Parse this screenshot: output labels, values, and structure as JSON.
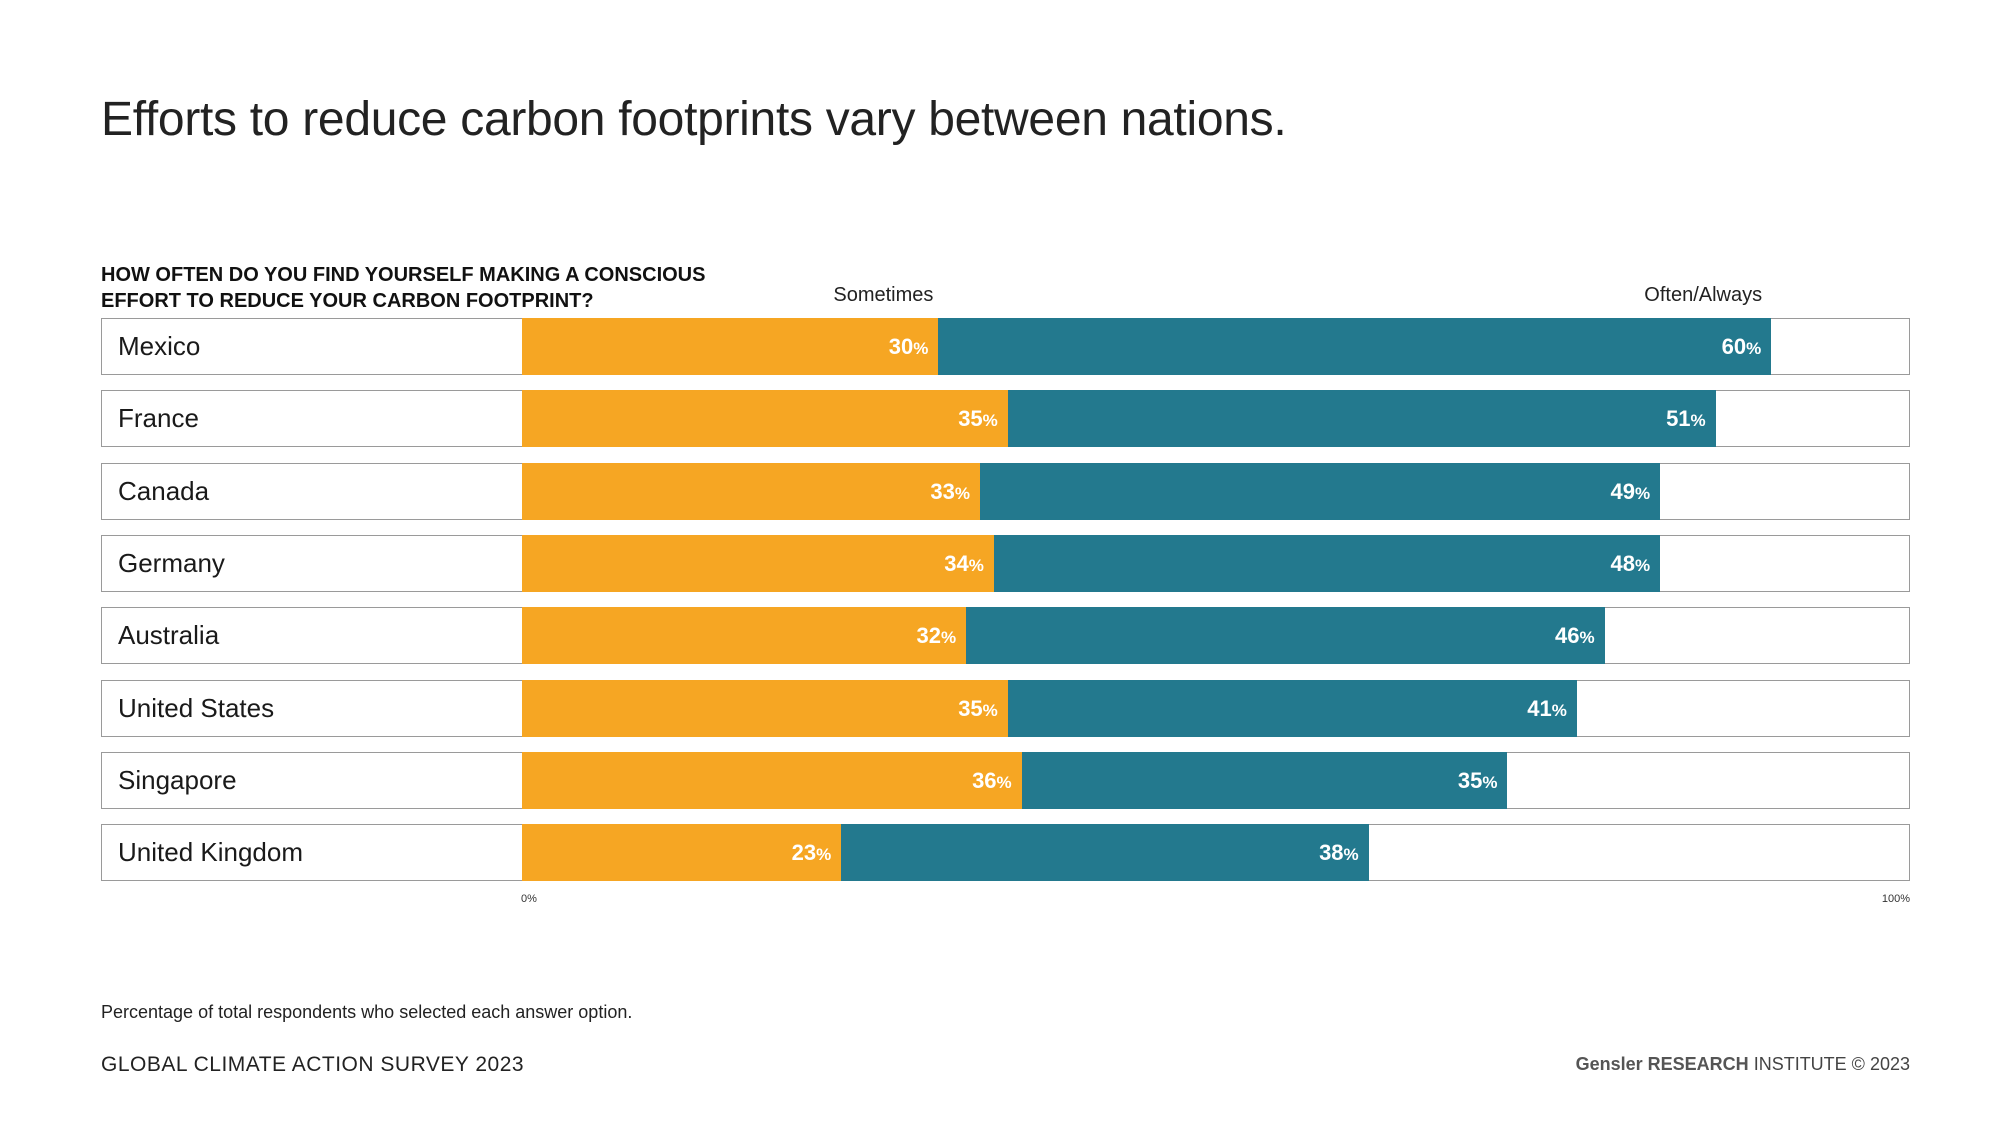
{
  "title": "Efforts to reduce carbon footprints vary between nations.",
  "question": {
    "line1": "HOW OFTEN DO YOU FIND YOURSELF MAKING A CONSCIOUS",
    "line2": "EFFORT TO REDUCE YOUR CARBON FOOTPRINT?"
  },
  "colors": {
    "sometimes": "#F6A623",
    "often": "#23798E"
  },
  "chart_data": {
    "type": "bar",
    "stacked": true,
    "orientation": "horizontal",
    "categories": [
      "Mexico",
      "France",
      "Canada",
      "Germany",
      "Australia",
      "United States",
      "Singapore",
      "United Kingdom"
    ],
    "series": [
      {
        "name": "Sometimes",
        "values": [
          30,
          35,
          33,
          34,
          32,
          35,
          36,
          23
        ]
      },
      {
        "name": "Often/Always",
        "values": [
          60,
          51,
          49,
          48,
          46,
          41,
          35,
          38
        ]
      }
    ],
    "value_suffix": "%",
    "xlim": [
      0,
      100
    ],
    "tick_labels": [
      "0%",
      "100%"
    ],
    "legend_placement": "top",
    "grid": false
  },
  "footer": {
    "note": "Percentage of total respondents who selected each answer option.",
    "survey": "GLOBAL CLIMATE ACTION SURVEY 2023",
    "brand_gensler": "Gensler",
    "brand_research": "RESEARCH",
    "brand_institute": "INSTITUTE © 2023"
  }
}
